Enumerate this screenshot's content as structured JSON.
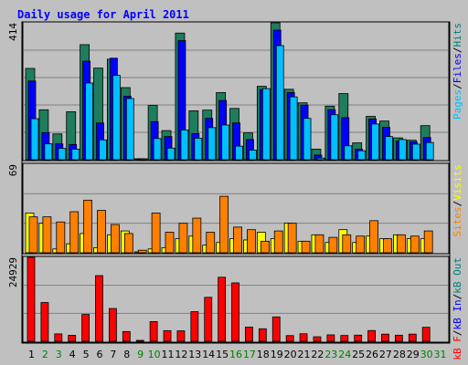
{
  "title": "Daily usage for April 2011",
  "colors": {
    "outer_bg": "#c0c0c0",
    "title_text": "#0000ff",
    "grid_line": "#808080",
    "hits": "#00c0ff",
    "files": "#0000ff",
    "pages": "#008080",
    "pages_bar": "#1e7d5c",
    "visits": "#ffff00",
    "sites": "#ff8000",
    "kbf": "#ff0000",
    "kbin": "#0000ff",
    "kbout": "#008080",
    "day_weekday": "#000000",
    "day_weekend": "#008000"
  },
  "chart_data": [
    {
      "type": "bar",
      "panel": "top",
      "ymax_label": "414",
      "ymax": 414,
      "right_labels": [
        {
          "text": "Pages",
          "color_key": "hits"
        },
        {
          "text": "/",
          "color_key": "day_weekday"
        },
        {
          "text": "Files",
          "color_key": "files"
        },
        {
          "text": "/",
          "color_key": "day_weekday"
        },
        {
          "text": "Hits",
          "color_key": "pages"
        }
      ],
      "categories": [
        "1",
        "2",
        "3",
        "4",
        "5",
        "6",
        "7",
        "8",
        "9",
        "10",
        "11",
        "12",
        "13",
        "14",
        "15",
        "16",
        "17",
        "18",
        "19",
        "20",
        "21",
        "22",
        "23",
        "24",
        "25",
        "26",
        "27",
        "28",
        "29",
        "30",
        "31"
      ],
      "series": [
        {
          "name": "Hits",
          "values": [
            276,
            151,
            78,
            145,
            348,
            277,
            304,
            218,
            0,
            164,
            88,
            383,
            148,
            150,
            203,
            155,
            81,
            222,
            414,
            213,
            172,
            32,
            162,
            200,
            51,
            131,
            117,
            66,
            59,
            103,
            0
          ]
        },
        {
          "name": "Files",
          "values": [
            238,
            82,
            48,
            46,
            298,
            111,
            307,
            192,
            3,
            115,
            70,
            360,
            79,
            125,
            179,
            111,
            61,
            212,
            392,
            203,
            165,
            14,
            151,
            127,
            32,
            123,
            98,
            56,
            54,
            67,
            0
          ]
        },
        {
          "name": "Pages",
          "values": [
            124,
            48,
            34,
            32,
            232,
            60,
            255,
            185,
            0,
            64,
            35,
            90,
            65,
            97,
            105,
            41,
            29,
            215,
            345,
            190,
            125,
            5,
            136,
            42,
            27,
            108,
            70,
            61,
            47,
            52,
            0
          ]
        }
      ]
    },
    {
      "type": "bar",
      "panel": "middle",
      "ymax_label": "69",
      "ymax": 69,
      "right_labels": [
        {
          "text": "Sites",
          "color_key": "sites"
        },
        {
          "text": "/",
          "color_key": "day_weekday"
        },
        {
          "text": "Visits",
          "color_key": "visits"
        }
      ],
      "categories": [
        "1",
        "2",
        "3",
        "4",
        "5",
        "6",
        "7",
        "8",
        "9",
        "10",
        "11",
        "12",
        "13",
        "14",
        "15",
        "16",
        "17",
        "18",
        "19",
        "20",
        "21",
        "22",
        "23",
        "24",
        "25",
        "26",
        "27",
        "28",
        "29",
        "30",
        "31"
      ],
      "series": [
        {
          "name": "Visits",
          "values": [
            31,
            23,
            3,
            7,
            15,
            4,
            14,
            17,
            0,
            3,
            4,
            11,
            13,
            6,
            8,
            11,
            10,
            16,
            11,
            23,
            9,
            14,
            8,
            18,
            8,
            13,
            11,
            14,
            11,
            11,
            0
          ]
        },
        {
          "name": "Sites",
          "values": [
            28,
            28,
            24,
            32,
            41,
            33,
            22,
            15,
            2,
            31,
            16,
            23,
            27,
            16,
            44,
            20,
            18,
            9,
            17,
            23,
            9,
            14,
            12,
            14,
            13,
            25,
            11,
            14,
            13,
            17,
            0
          ]
        }
      ]
    },
    {
      "type": "bar",
      "panel": "bottom",
      "ymax_label": "24929",
      "ymax": 24929,
      "right_labels": [
        {
          "text": "kB F",
          "color_key": "kbf"
        },
        {
          "text": "/",
          "color_key": "day_weekday"
        },
        {
          "text": "kB In",
          "color_key": "kbin"
        },
        {
          "text": "/",
          "color_key": "day_weekday"
        },
        {
          "text": "kB Out",
          "color_key": "kbout"
        }
      ],
      "categories": [
        "1",
        "2",
        "3",
        "4",
        "5",
        "6",
        "7",
        "8",
        "9",
        "10",
        "11",
        "12",
        "13",
        "14",
        "15",
        "16",
        "17",
        "18",
        "19",
        "20",
        "21",
        "22",
        "23",
        "24",
        "25",
        "26",
        "27",
        "28",
        "29",
        "30",
        "31"
      ],
      "series": [
        {
          "name": "kB F",
          "values": [
            24929,
            11504,
            2191,
            1769,
            7962,
            19495,
            9730,
            2894,
            0,
            5842,
            3154,
            3108,
            8788,
            13049,
            19015,
            17346,
            4216,
            3715,
            7236,
            1686,
            2233,
            1339,
            1906,
            1726,
            1826,
            3189,
            2117,
            1810,
            2127,
            4159,
            0
          ]
        }
      ]
    }
  ]
}
